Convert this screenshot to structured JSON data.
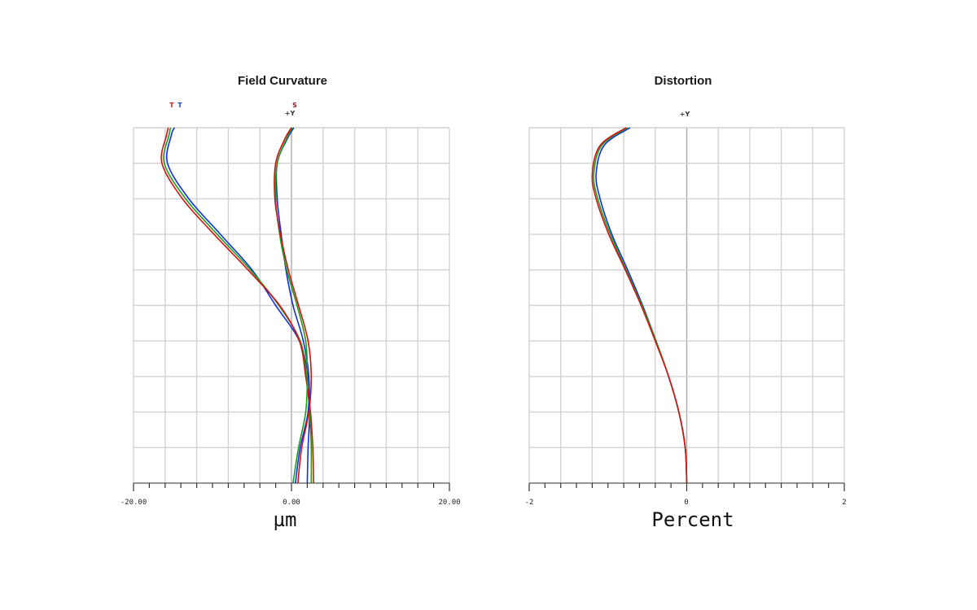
{
  "chart_data": [
    {
      "type": "line",
      "title": "Field Curvature",
      "xlabel": "µm",
      "xlim": [
        -20,
        20
      ],
      "ylim": [
        0,
        1
      ],
      "grid": true,
      "x_tick_labels": [
        "-20.00",
        "0.00",
        "20.00"
      ],
      "header_markers": [
        {
          "text": "T",
          "color": "#d42020"
        },
        {
          "text": "T",
          "color": "#2040d0"
        },
        {
          "text": "S",
          "color": "#a01818"
        },
        {
          "text": "+Y",
          "color": "#333333"
        }
      ],
      "series": [
        {
          "color": "#1030e0",
          "points": [
            [
              2.0,
              0
            ],
            [
              2.1,
              0.1
            ],
            [
              2.3,
              0.2
            ],
            [
              2.1,
              0.3
            ],
            [
              1.0,
              0.4
            ],
            [
              -2.0,
              0.5
            ],
            [
              -5.0,
              0.6
            ],
            [
              -9.0,
              0.7
            ],
            [
              -13.0,
              0.8
            ],
            [
              -15.7,
              0.9
            ],
            [
              -15.2,
              0.98
            ],
            [
              -14.8,
              1.0
            ]
          ]
        },
        {
          "color": "#1aa01a",
          "points": [
            [
              2.5,
              0
            ],
            [
              2.5,
              0.1
            ],
            [
              2.3,
              0.2
            ],
            [
              1.9,
              0.3
            ],
            [
              1.1,
              0.4
            ],
            [
              -1.6,
              0.5
            ],
            [
              -5.2,
              0.6
            ],
            [
              -9.4,
              0.7
            ],
            [
              -13.4,
              0.8
            ],
            [
              -16.1,
              0.9
            ],
            [
              -15.5,
              0.98
            ],
            [
              -15.3,
              1.0
            ]
          ]
        },
        {
          "color": "#d81010",
          "points": [
            [
              2.8,
              0
            ],
            [
              2.7,
              0.1
            ],
            [
              2.4,
              0.2
            ],
            [
              1.8,
              0.3
            ],
            [
              1.0,
              0.4
            ],
            [
              -1.5,
              0.5
            ],
            [
              -5.5,
              0.6
            ],
            [
              -9.8,
              0.7
            ],
            [
              -13.8,
              0.8
            ],
            [
              -16.4,
              0.9
            ],
            [
              -15.8,
              0.98
            ],
            [
              -15.6,
              1.0
            ]
          ]
        },
        {
          "color": "#1030e0",
          "points": [
            [
              0.5,
              0
            ],
            [
              1.1,
              0.1
            ],
            [
              2.1,
              0.2
            ],
            [
              2.2,
              0.3
            ],
            [
              1.5,
              0.4
            ],
            [
              0.2,
              0.5
            ],
            [
              -0.7,
              0.6
            ],
            [
              -1.3,
              0.7
            ],
            [
              -1.8,
              0.8
            ],
            [
              -1.8,
              0.9
            ],
            [
              -0.5,
              0.97
            ],
            [
              0.3,
              1.0
            ]
          ]
        },
        {
          "color": "#1aa01a",
          "points": [
            [
              0.2,
              0
            ],
            [
              0.9,
              0.1
            ],
            [
              1.8,
              0.2
            ],
            [
              2.0,
              0.3
            ],
            [
              1.8,
              0.4
            ],
            [
              0.7,
              0.5
            ],
            [
              -0.6,
              0.6
            ],
            [
              -1.5,
              0.7
            ],
            [
              -2.0,
              0.8
            ],
            [
              -1.8,
              0.9
            ],
            [
              -0.6,
              0.97
            ],
            [
              0.1,
              1.0
            ]
          ]
        },
        {
          "color": "#d81010",
          "points": [
            [
              0.8,
              0
            ],
            [
              1.3,
              0.1
            ],
            [
              2.2,
              0.2
            ],
            [
              2.5,
              0.3
            ],
            [
              2.1,
              0.4
            ],
            [
              0.9,
              0.5
            ],
            [
              -0.4,
              0.6
            ],
            [
              -1.4,
              0.7
            ],
            [
              -2.1,
              0.8
            ],
            [
              -2.0,
              0.9
            ],
            [
              -0.8,
              0.97
            ],
            [
              0.0,
              1.0
            ]
          ]
        }
      ]
    },
    {
      "type": "line",
      "title": "Distortion",
      "xlabel": "Percent",
      "xlim": [
        -2,
        2
      ],
      "ylim": [
        0,
        1
      ],
      "grid": true,
      "x_tick_labels": [
        "-2",
        "0",
        "2"
      ],
      "header_markers": [
        {
          "text": "+Y",
          "color": "#333333"
        }
      ],
      "series": [
        {
          "color": "#1030e0",
          "points": [
            [
              0,
              0
            ],
            [
              -0.02,
              0.1
            ],
            [
              -0.1,
              0.2
            ],
            [
              -0.23,
              0.3
            ],
            [
              -0.39,
              0.4
            ],
            [
              -0.56,
              0.5
            ],
            [
              -0.75,
              0.6
            ],
            [
              -0.95,
              0.7
            ],
            [
              -1.1,
              0.8
            ],
            [
              -1.15,
              0.87
            ],
            [
              -1.05,
              0.95
            ],
            [
              -0.72,
              1.0
            ]
          ]
        },
        {
          "color": "#1aa01a",
          "points": [
            [
              0,
              0
            ],
            [
              -0.02,
              0.1
            ],
            [
              -0.1,
              0.2
            ],
            [
              -0.23,
              0.3
            ],
            [
              -0.39,
              0.4
            ],
            [
              -0.57,
              0.5
            ],
            [
              -0.77,
              0.6
            ],
            [
              -0.97,
              0.7
            ],
            [
              -1.13,
              0.8
            ],
            [
              -1.18,
              0.87
            ],
            [
              -1.08,
              0.95
            ],
            [
              -0.75,
              1.0
            ]
          ]
        },
        {
          "color": "#d81010",
          "points": [
            [
              0,
              0
            ],
            [
              -0.02,
              0.1
            ],
            [
              -0.1,
              0.2
            ],
            [
              -0.23,
              0.3
            ],
            [
              -0.4,
              0.4
            ],
            [
              -0.58,
              0.5
            ],
            [
              -0.78,
              0.6
            ],
            [
              -0.99,
              0.7
            ],
            [
              -1.15,
              0.8
            ],
            [
              -1.2,
              0.87
            ],
            [
              -1.1,
              0.95
            ],
            [
              -0.77,
              1.0
            ]
          ]
        }
      ]
    }
  ]
}
